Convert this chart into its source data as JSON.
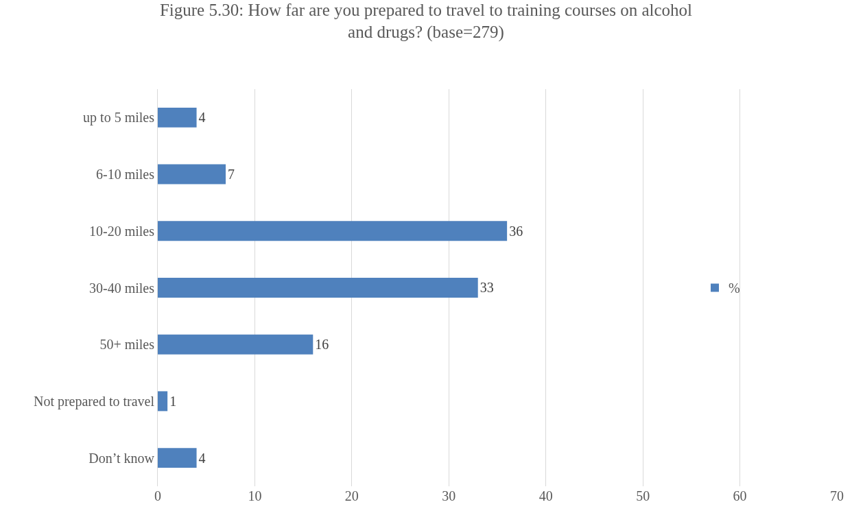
{
  "chart_data": {
    "type": "bar",
    "orientation": "horizontal",
    "title": "Figure 5.30: How far are you prepared to travel to training courses on alcohol and drugs? (base=279)",
    "categories": [
      "up to 5 miles",
      "6-10 miles",
      "10-20 miles",
      "30-40 miles",
      "50+ miles",
      "Not prepared to travel",
      "Don’t know"
    ],
    "series": [
      {
        "name": "%",
        "color": "#4f81bd",
        "values": [
          4,
          7,
          36,
          33,
          16,
          1,
          4
        ]
      }
    ],
    "xlim": [
      0,
      70
    ],
    "xticks": [
      0,
      10,
      20,
      30,
      40,
      50,
      60,
      70
    ],
    "grid": "x",
    "legend": "right",
    "data_labels": true
  }
}
